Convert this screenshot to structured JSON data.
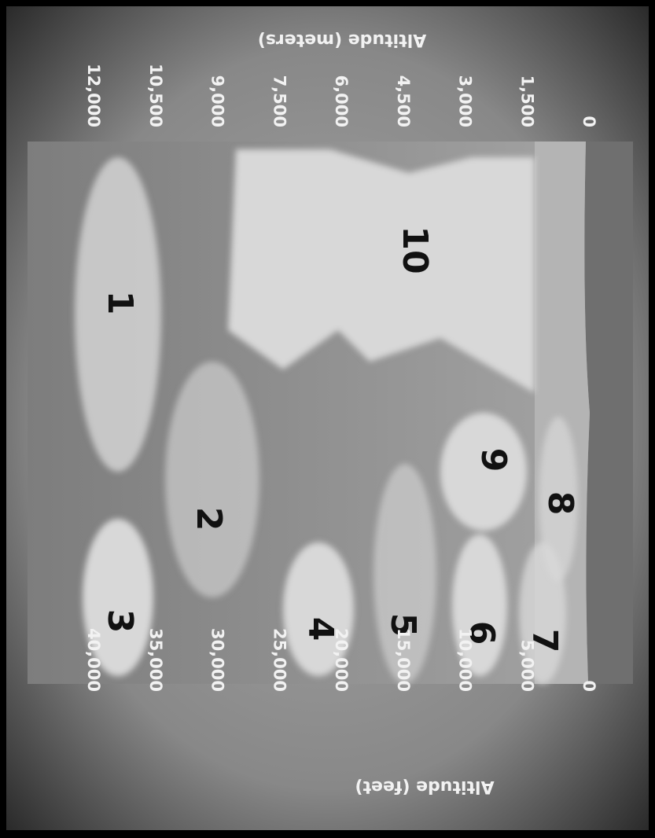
{
  "feet_axis": {
    "title": "Altitude (feet)",
    "labels": [
      "40,000",
      "35,000",
      "30,000",
      "25,000",
      "20,000",
      "15,000",
      "10,000",
      "5,000",
      "0"
    ]
  },
  "meters_axis": {
    "title": "Altitude (meters)",
    "labels": [
      "12,000",
      "10,500",
      "9,000",
      "7,500",
      "6,000",
      "4,500",
      "3,000",
      "1,500",
      "0"
    ]
  },
  "clouds": [
    "1",
    "2",
    "3",
    "4",
    "5",
    "6",
    "7",
    "8",
    "9",
    "10"
  ]
}
